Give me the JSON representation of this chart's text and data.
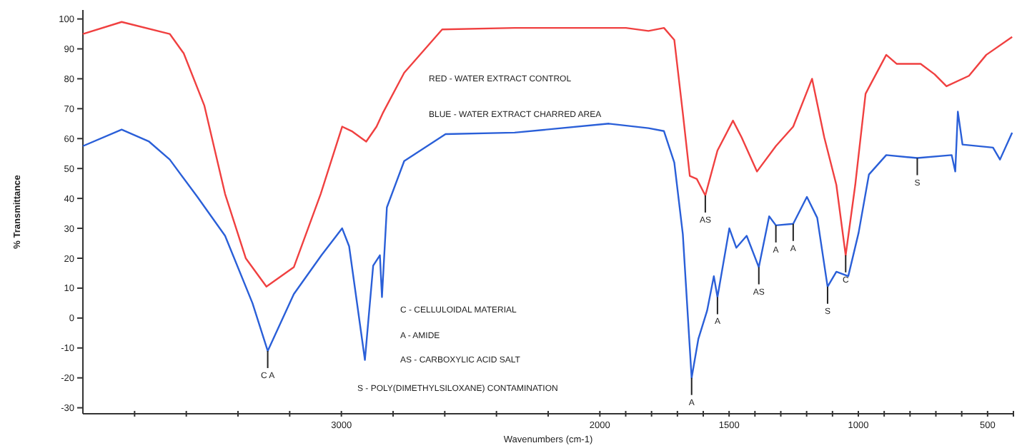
{
  "chart_data": {
    "type": "line",
    "xlabel": "Wavenumbers (cm-1)",
    "ylabel": "% Transmittance",
    "xlim": [
      4000,
      400
    ],
    "ylim": [
      -32,
      103
    ],
    "xticks": [
      {
        "value": 3800,
        "label": null
      },
      {
        "value": 3600,
        "label": null
      },
      {
        "value": 3400,
        "label": null
      },
      {
        "value": 3200,
        "label": null
      },
      3000,
      {
        "value": 2800,
        "label": null
      },
      {
        "value": 2600,
        "label": null
      },
      {
        "value": 2400,
        "label": null
      },
      {
        "value": 2200,
        "label": null
      },
      2000,
      {
        "value": 1900,
        "label": null
      },
      {
        "value": 1800,
        "label": null
      },
      {
        "value": 1700,
        "label": null
      },
      {
        "value": 1600,
        "label": null
      },
      1500,
      {
        "value": 1400,
        "label": null
      },
      {
        "value": 1300,
        "label": null
      },
      {
        "value": 1200,
        "label": null
      },
      {
        "value": 1100,
        "label": null
      },
      1000,
      {
        "value": 900,
        "label": null
      },
      {
        "value": 800,
        "label": null
      },
      {
        "value": 700,
        "label": null
      },
      {
        "value": 600,
        "label": null
      },
      500,
      {
        "value": 400,
        "label": null
      }
    ],
    "yticks": [
      -30,
      -20,
      -10,
      0,
      10,
      20,
      30,
      40,
      50,
      60,
      70,
      80,
      90,
      100
    ],
    "marker": "none",
    "line_style": "solid",
    "grid": false,
    "series": [
      {
        "color": "#f04040",
        "x": [
          4000,
          3850,
          3664,
          3610,
          3530,
          3450,
          3370,
          3290,
          3184,
          3080,
          2997,
          2960,
          2904,
          2864,
          2840,
          2757,
          2610,
          2330,
          1899,
          1812,
          1752,
          1712,
          1679,
          1652,
          1625,
          1592,
          1545,
          1485,
          1452,
          1392,
          1319,
          1252,
          1179,
          1132,
          1085,
          1049,
          1012,
          972,
          892,
          852,
          759,
          705,
          659,
          572,
          505,
          405
        ],
        "values": [
          95,
          99,
          95,
          88.5,
          71,
          41.5,
          20,
          10.5,
          17,
          41.5,
          64,
          62.5,
          59,
          64,
          68.5,
          82,
          96.5,
          97,
          97,
          96,
          97,
          93,
          68.5,
          47.5,
          46.5,
          41,
          56,
          66,
          60.5,
          49,
          57.5,
          64,
          80,
          60.5,
          44.5,
          21,
          44.5,
          75,
          88,
          85,
          85,
          81.5,
          77.5,
          81,
          88,
          94
        ]
      },
      {
        "color": "#2a5fd8",
        "x": [
          4000,
          3850,
          3744,
          3664,
          3557,
          3450,
          3344,
          3285,
          3184,
          3077,
          2997,
          2970,
          2909,
          2877,
          2851,
          2843,
          2824,
          2757,
          2597,
          2330,
          1965,
          1812,
          1752,
          1712,
          1679,
          1645,
          1619,
          1585,
          1559,
          1545,
          1499,
          1472,
          1432,
          1385,
          1345,
          1319,
          1252,
          1199,
          1159,
          1119,
          1085,
          1039,
          999,
          959,
          892,
          772,
          639,
          625,
          615,
          597,
          479,
          452,
          405
        ],
        "values": [
          57.5,
          63,
          59,
          53,
          40.5,
          27.5,
          5,
          -11,
          8,
          21,
          30,
          24,
          -14,
          17.5,
          21,
          7,
          37,
          52.5,
          61.5,
          62,
          65,
          63.5,
          62.5,
          52,
          28,
          -20,
          -7,
          2.5,
          14,
          7,
          30,
          23.5,
          27.5,
          17,
          34,
          31,
          31.5,
          40.5,
          33.5,
          10.5,
          15.5,
          14,
          28.5,
          48,
          54.5,
          53.5,
          54.5,
          49,
          69,
          58,
          57,
          53,
          62
        ]
      }
    ],
    "annotations": [
      "RED - WATER EXTRACT CONTROL",
      "BLUE - WATER EXTRACT CHARRED AREA",
      "C - CELLULOIDAL MATERIAL",
      "A - AMIDE",
      "AS - CARBOXYLIC ACID SALT",
      "S - POLY(DIMETHYLSILOXANE) CONTAMINATION",
      {
        "text": "C A",
        "x": 3285,
        "y": -11
      },
      {
        "text": "A",
        "x": 1645,
        "y": -20
      },
      {
        "text": "AS",
        "x": 1592,
        "y": 41
      },
      {
        "text": "A",
        "x": 1545,
        "y": 7
      },
      {
        "text": "AS",
        "x": 1385,
        "y": 17
      },
      {
        "text": "A",
        "x": 1319,
        "y": 31
      },
      {
        "text": "A",
        "x": 1252,
        "y": 31.5
      },
      {
        "text": "S",
        "x": 1119,
        "y": 10.5
      },
      {
        "text": "C",
        "x": 1049,
        "y": 21
      },
      {
        "text": "S",
        "x": 772,
        "y": 53.5
      }
    ]
  }
}
